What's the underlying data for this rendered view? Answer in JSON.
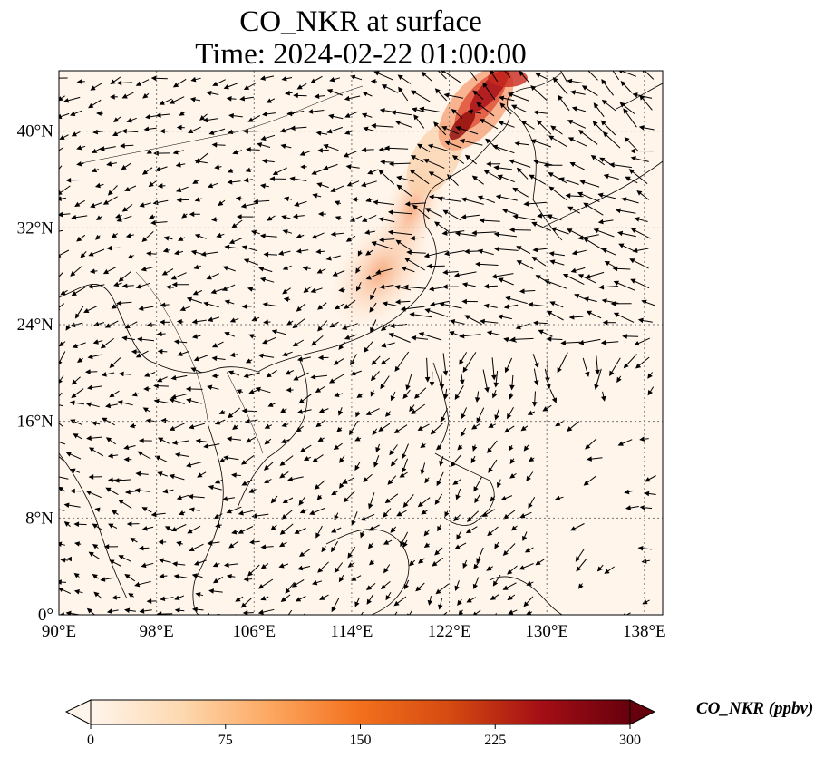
{
  "title": {
    "line1": "CO_NKR at surface",
    "line2": "Time: 2024-02-22 01:00:00"
  },
  "map": {
    "extent": {
      "lon_min": 90,
      "lon_max": 139.5,
      "lat_min": 0,
      "lat_max": 45
    },
    "x_ticks": [
      {
        "value": 90,
        "label": "90°E"
      },
      {
        "value": 98,
        "label": "98°E"
      },
      {
        "value": 106,
        "label": "106°E"
      },
      {
        "value": 114,
        "label": "114°E"
      },
      {
        "value": 122,
        "label": "122°E"
      },
      {
        "value": 130,
        "label": "130°E"
      },
      {
        "value": 138,
        "label": "138°E"
      }
    ],
    "y_ticks": [
      {
        "value": 0,
        "label": "0°"
      },
      {
        "value": 8,
        "label": "8°N"
      },
      {
        "value": 16,
        "label": "16°N"
      },
      {
        "value": 24,
        "label": "24°N"
      },
      {
        "value": 32,
        "label": "32°N"
      },
      {
        "value": 40,
        "label": "40°N"
      }
    ],
    "gridlines": "dotted",
    "background_color": "#fff5eb",
    "plume_colors": [
      "#fde0c5",
      "#fbb882",
      "#f07d4a",
      "#d0351e",
      "#8f0a0a"
    ],
    "land_outline_color": "#000000"
  },
  "colorbar": {
    "label": "CO_NKR (ppbv)",
    "min": 0,
    "max": 300,
    "extend": "both",
    "colormap": [
      "#fff5eb",
      "#fdd9b1",
      "#fda760",
      "#f2701d",
      "#d44a11",
      "#a50f15",
      "#67000d"
    ],
    "ticks": [
      {
        "value": 0,
        "label": "0"
      },
      {
        "value": 75,
        "label": "75"
      },
      {
        "value": 150,
        "label": "150"
      },
      {
        "value": 225,
        "label": "225"
      },
      {
        "value": 300,
        "label": "300"
      }
    ]
  }
}
